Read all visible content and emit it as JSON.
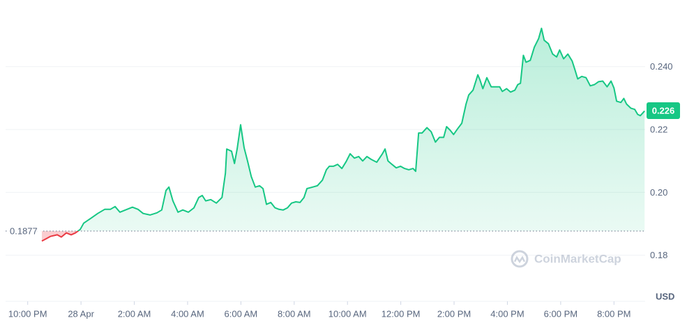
{
  "chart_data": {
    "type": "line",
    "color": "#16c784",
    "color_below": "#ea3943",
    "baseline": 0.1877,
    "current": 0.226,
    "y_unit": "USD",
    "watermark": "CoinMarketCap",
    "grid": true,
    "xlim": [
      21.17,
      45.17
    ],
    "ylim": [
      0.166,
      0.2612
    ],
    "xticks": [
      {
        "value": 22,
        "label": "10:00 PM"
      },
      {
        "value": 24,
        "label": "28 Apr"
      },
      {
        "value": 26,
        "label": "2:00 AM"
      },
      {
        "value": 28,
        "label": "4:00 AM"
      },
      {
        "value": 30,
        "label": "6:00 AM"
      },
      {
        "value": 32,
        "label": "8:00 AM"
      },
      {
        "value": 34,
        "label": "10:00 AM"
      },
      {
        "value": 36,
        "label": "12:00 PM"
      },
      {
        "value": 38,
        "label": "2:00 PM"
      },
      {
        "value": 40,
        "label": "4:00 PM"
      },
      {
        "value": 42,
        "label": "6:00 PM"
      },
      {
        "value": 44,
        "label": "8:00 PM"
      }
    ],
    "yticks": [
      0.18,
      {
        "value": 0.2,
        "label": "0.20"
      },
      0.22,
      {
        "value": 0.24,
        "label": "0.240"
      }
    ],
    "x": [
      22.53,
      22.66,
      22.85,
      23.11,
      23.26,
      23.45,
      23.63,
      23.79,
      23.97,
      24.1,
      24.36,
      24.63,
      24.89,
      25.1,
      25.28,
      25.46,
      25.67,
      25.93,
      26.14,
      26.33,
      26.59,
      26.85,
      27.03,
      27.19,
      27.3,
      27.45,
      27.64,
      27.82,
      28.03,
      28.24,
      28.42,
      28.55,
      28.68,
      28.87,
      29.08,
      29.29,
      29.42,
      29.47,
      29.65,
      29.76,
      29.86,
      29.99,
      30.12,
      30.25,
      30.39,
      30.54,
      30.7,
      30.83,
      30.96,
      31.12,
      31.28,
      31.43,
      31.59,
      31.75,
      31.9,
      32.06,
      32.22,
      32.37,
      32.48,
      32.69,
      32.87,
      33.06,
      33.21,
      33.32,
      33.47,
      33.63,
      33.79,
      33.95,
      34.1,
      34.26,
      34.42,
      34.57,
      34.73,
      34.89,
      35.1,
      35.31,
      35.41,
      35.52,
      35.67,
      35.83,
      35.99,
      36.14,
      36.3,
      36.46,
      36.56,
      36.67,
      36.8,
      36.98,
      37.14,
      37.3,
      37.45,
      37.61,
      37.72,
      37.85,
      37.98,
      38.13,
      38.29,
      38.45,
      38.55,
      38.71,
      38.89,
      38.97,
      39.08,
      39.23,
      39.39,
      39.55,
      39.71,
      39.81,
      39.97,
      40.12,
      40.28,
      40.39,
      40.49,
      40.6,
      40.7,
      40.86,
      41.01,
      41.17,
      41.28,
      41.38,
      41.54,
      41.7,
      41.85,
      41.96,
      42.11,
      42.27,
      42.43,
      42.53,
      42.64,
      42.79,
      42.95,
      43.11,
      43.27,
      43.42,
      43.58,
      43.74,
      43.89,
      44.0,
      44.1,
      44.26,
      44.37,
      44.47,
      44.63,
      44.78,
      44.89,
      44.99,
      45.15
    ],
    "values": [
      0.1845,
      0.1851,
      0.186,
      0.1865,
      0.1858,
      0.1871,
      0.1865,
      0.1871,
      0.1882,
      0.1902,
      0.1917,
      0.1933,
      0.1946,
      0.1946,
      0.1955,
      0.1937,
      0.1944,
      0.1953,
      0.1946,
      0.1933,
      0.1928,
      0.1935,
      0.1944,
      0.2006,
      0.2017,
      0.1973,
      0.1937,
      0.1944,
      0.1937,
      0.1951,
      0.1984,
      0.199,
      0.1973,
      0.1977,
      0.1966,
      0.1984,
      0.2061,
      0.2138,
      0.2131,
      0.2092,
      0.2138,
      0.2215,
      0.2142,
      0.21,
      0.205,
      0.2017,
      0.2021,
      0.2012,
      0.1962,
      0.1968,
      0.1951,
      0.1946,
      0.1944,
      0.1951,
      0.1966,
      0.197,
      0.1968,
      0.1984,
      0.2012,
      0.2017,
      0.2021,
      0.2039,
      0.2072,
      0.2083,
      0.2083,
      0.2089,
      0.2076,
      0.2098,
      0.2123,
      0.2109,
      0.2114,
      0.21,
      0.2114,
      0.2105,
      0.2096,
      0.2123,
      0.2138,
      0.21,
      0.2089,
      0.2078,
      0.2083,
      0.2076,
      0.2072,
      0.2076,
      0.2067,
      0.2189,
      0.2189,
      0.2206,
      0.2193,
      0.216,
      0.2175,
      0.2175,
      0.2209,
      0.2198,
      0.2184,
      0.2202,
      0.222,
      0.2281,
      0.231,
      0.2325,
      0.2374,
      0.2358,
      0.233,
      0.2365,
      0.2336,
      0.2336,
      0.2336,
      0.2321,
      0.233,
      0.2319,
      0.2325,
      0.2343,
      0.2347,
      0.2436,
      0.2414,
      0.242,
      0.2462,
      0.2489,
      0.2522,
      0.2484,
      0.2473,
      0.244,
      0.2431,
      0.2453,
      0.2425,
      0.244,
      0.2418,
      0.2392,
      0.2361,
      0.2369,
      0.2365,
      0.2339,
      0.2343,
      0.2352,
      0.2354,
      0.2336,
      0.2354,
      0.2332,
      0.229,
      0.2286,
      0.2299,
      0.2281,
      0.2268,
      0.2264,
      0.2248,
      0.2244,
      0.2259
    ]
  }
}
